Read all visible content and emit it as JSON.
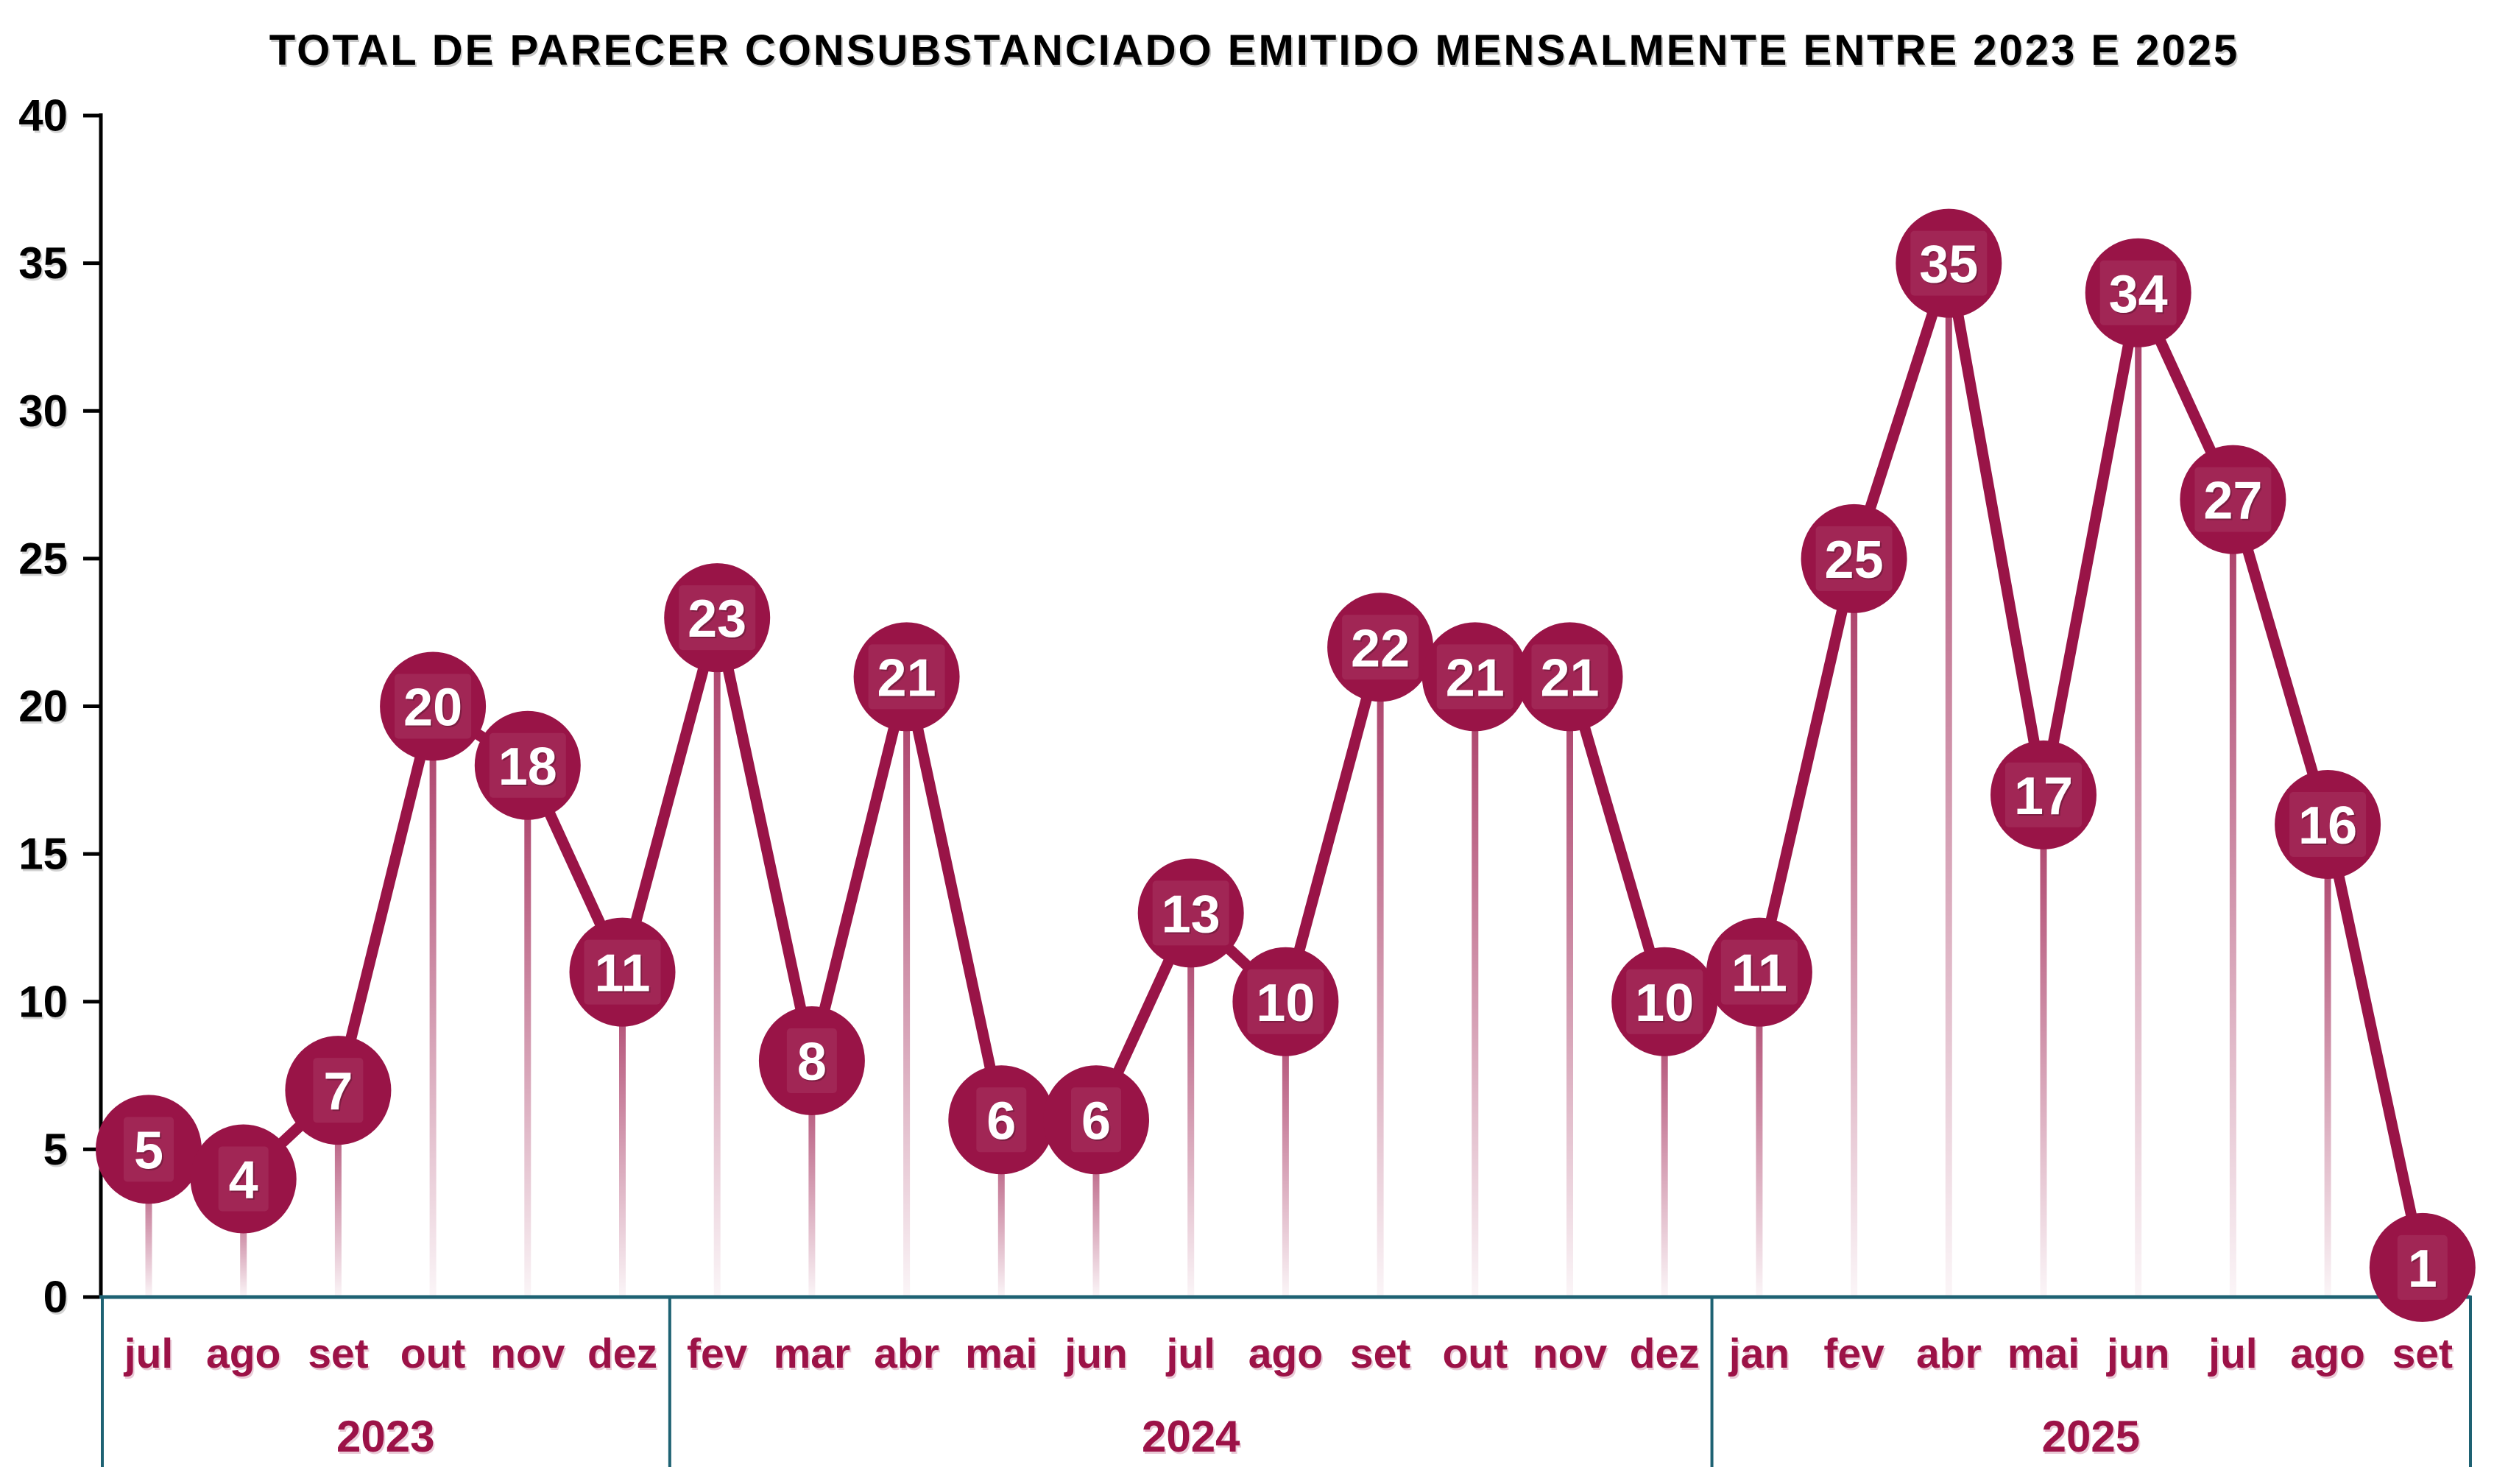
{
  "chart_data": {
    "type": "line",
    "title": "TOTAL DE PARECER CONSUBSTANCIADO EMITIDO MENSALMENTE ENTRE 2023 E 2025",
    "xlabel": "",
    "ylabel": "",
    "ylim": [
      0,
      40
    ],
    "yticks": [
      0,
      5,
      10,
      15,
      20,
      25,
      30,
      35,
      40
    ],
    "grid": false,
    "legend_position": "none",
    "data_labels": "inside-markers",
    "groups": [
      {
        "year": "2023",
        "categories": [
          "jul",
          "ago",
          "set",
          "out",
          "nov",
          "dez"
        ],
        "values": [
          5,
          4,
          7,
          20,
          18,
          11
        ]
      },
      {
        "year": "2024",
        "categories": [
          "fev",
          "mar",
          "abr",
          "mai",
          "jun",
          "jul",
          "ago",
          "set",
          "out",
          "nov",
          "dez"
        ],
        "values": [
          23,
          8,
          21,
          6,
          6,
          13,
          10,
          22,
          21,
          21,
          10
        ]
      },
      {
        "year": "2025",
        "categories": [
          "jan",
          "fev",
          "abr",
          "mai",
          "jun",
          "jul",
          "ago",
          "set"
        ],
        "values": [
          11,
          25,
          35,
          17,
          34,
          27,
          16,
          1
        ]
      }
    ],
    "colors": {
      "series": "#991447",
      "marker_fill": "#991447",
      "marker_text": "#ffffff",
      "category_text": "#9C1247",
      "year_text": "#9C1247",
      "x_axis": "#1E6273",
      "separator": "#1E6273",
      "y_axis": "#000000",
      "ytick_text": "#000000",
      "background": "#ffffff"
    }
  }
}
